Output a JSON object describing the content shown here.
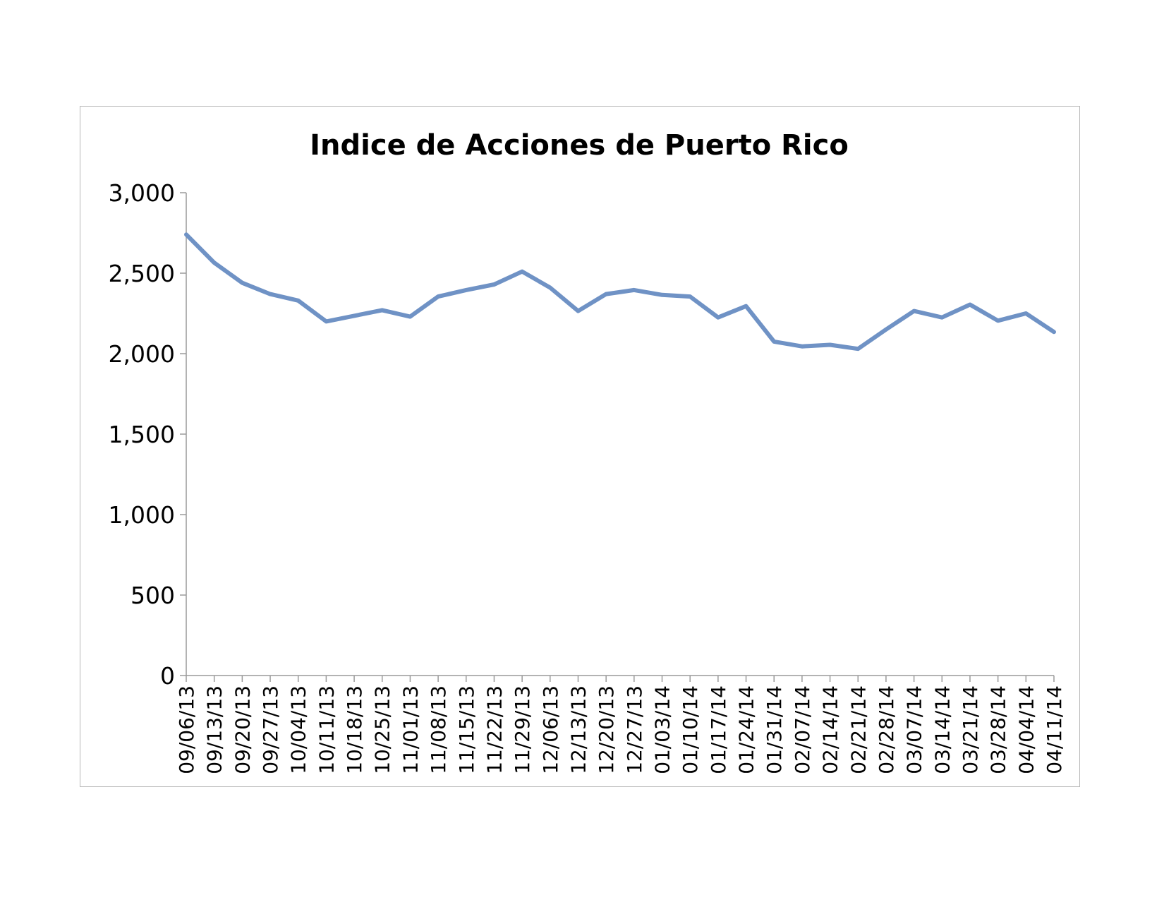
{
  "chart_data": {
    "type": "line",
    "title": "Indice de Acciones de Puerto Rico",
    "xlabel": "",
    "ylabel": "",
    "ylim": [
      0,
      3000
    ],
    "y_ticks": [
      "0",
      "500",
      "1,000",
      "1,500",
      "2,000",
      "2,500",
      "3,000"
    ],
    "y_tick_values": [
      0,
      500,
      1000,
      1500,
      2000,
      2500,
      3000
    ],
    "grid": false,
    "legend": "none",
    "line_color": "#6f92c5",
    "x": [
      "09/06/13",
      "09/13/13",
      "09/20/13",
      "09/27/13",
      "10/04/13",
      "10/11/13",
      "10/18/13",
      "10/25/13",
      "11/01/13",
      "11/08/13",
      "11/15/13",
      "11/22/13",
      "11/29/13",
      "12/06/13",
      "12/13/13",
      "12/20/13",
      "12/27/13",
      "01/03/14",
      "01/10/14",
      "01/17/14",
      "01/24/14",
      "01/31/14",
      "02/07/14",
      "02/14/14",
      "02/21/14",
      "02/28/14",
      "03/07/14",
      "03/14/14",
      "03/21/14",
      "03/28/14",
      "04/04/14",
      "04/11/14"
    ],
    "series": [
      {
        "name": "",
        "values": [
          2740,
          2565,
          2440,
          2370,
          2330,
          2200,
          2235,
          2270,
          2230,
          2355,
          2395,
          2430,
          2510,
          2410,
          2265,
          2370,
          2395,
          2365,
          2355,
          2225,
          2295,
          2075,
          2045,
          2055,
          2030,
          2150,
          2265,
          2225,
          2305,
          2205,
          2250,
          2135
        ]
      }
    ]
  }
}
